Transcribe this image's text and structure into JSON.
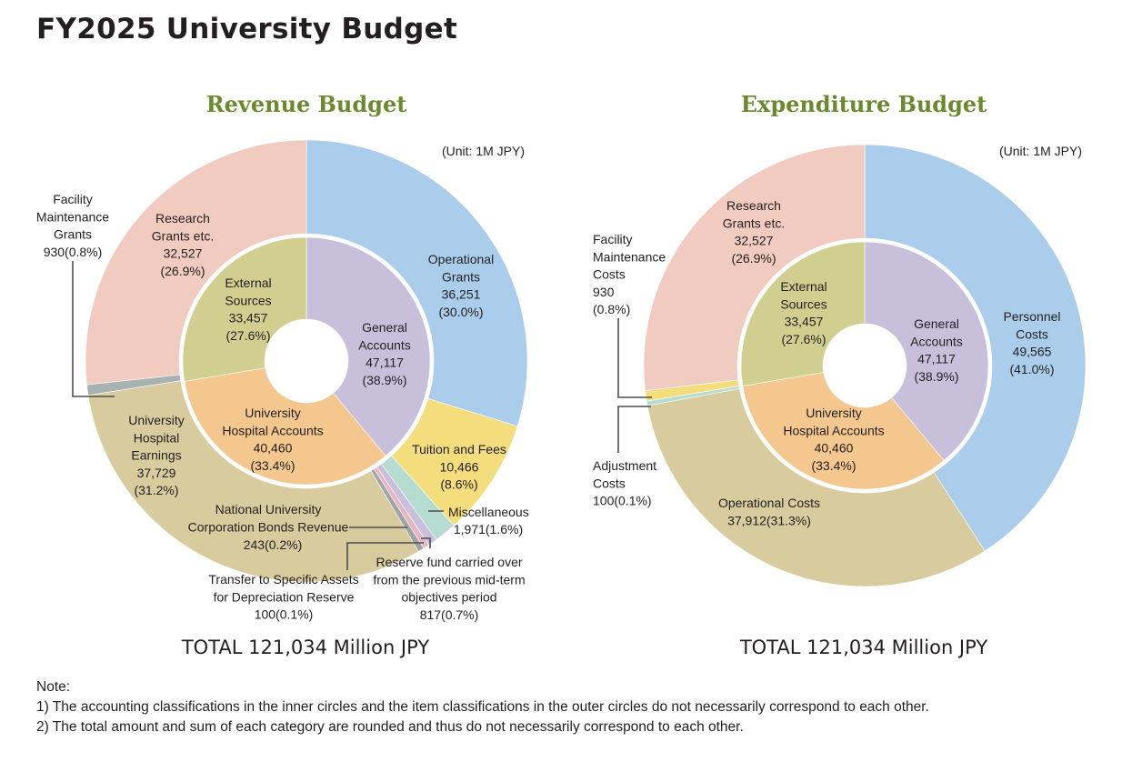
{
  "title": "FY2025 University Budget",
  "notes": {
    "heading": "Note:",
    "items": [
      "1) The accounting classifications in the inner circles and the item classifications in the outer circles do not necessarily correspond to each other.",
      "2) The total amount and sum of each category are rounded and thus do not necessarily correspond to each other."
    ]
  },
  "chart_data": [
    {
      "type": "pie",
      "title": "Revenue Budget",
      "unit": "(Unit: 1M JPY)",
      "total": "TOTAL 121,034 Million JPY",
      "outer": [
        {
          "label": "Operational Grants",
          "value": 36251,
          "pct": "(30.0%)",
          "color": "#abcdec"
        },
        {
          "label": "Tuition and Fees",
          "value": 10466,
          "pct": "(8.6%)",
          "color": "#f3dd7d"
        },
        {
          "label": "Miscellaneous",
          "value": 1971,
          "pct": "1,971(1.6%)",
          "color": "#b5dcd0"
        },
        {
          "label": "Reserve fund carried over from the previous mid-term objectives period",
          "value": 817,
          "pct": "817(0.7%)",
          "color": "#c9bfdd"
        },
        {
          "label": "Transfer to Specific Assets for Depreciation Reserve",
          "value": 100,
          "pct": "100(0.1%)",
          "color": "#e8b6c3"
        },
        {
          "label": "National University Corporation Bonds Revenue",
          "value": 243,
          "pct": "243(0.2%)",
          "color": "#9ea5a4"
        },
        {
          "label": "University Hospital Earnings",
          "value": 37729,
          "pct": "(31.2%)",
          "color": "#d8cc9e"
        },
        {
          "label": "Facility Maintenance Grants",
          "value": 930,
          "pct": "930(0.8%)",
          "color": "#a8b2b0"
        },
        {
          "label": "Research Grants etc.",
          "value": 32527,
          "pct": "(26.9%)",
          "color": "#f1cbbf"
        }
      ],
      "inner": [
        {
          "label": "General Accounts",
          "value": 47117,
          "pct": "(38.9%)",
          "color": "#c8c0db"
        },
        {
          "label": "University Hospital Accounts",
          "value": 40460,
          "pct": "(33.4%)",
          "color": "#f3c78d"
        },
        {
          "label": "External Sources",
          "value": 33457,
          "pct": "(27.6%)",
          "color": "#d1cf90"
        }
      ]
    },
    {
      "type": "pie",
      "title": "Expenditure Budget",
      "unit": "(Unit: 1M JPY)",
      "total": "TOTAL 121,034 Million JPY",
      "outer": [
        {
          "label": "Personnel Costs",
          "value": 49565,
          "pct": "(41.0%)",
          "color": "#abcdec"
        },
        {
          "label": "Operational Costs",
          "value": 37912,
          "pct": "37,912(31.3%)",
          "color": "#d8cc9e"
        },
        {
          "label": "Adjustment Costs",
          "value": 100,
          "pct": "100(0.1%)",
          "color": "#b5dcd0"
        },
        {
          "label": "Facility Maintenance Costs",
          "value": 930,
          "pct": "(0.8%)",
          "color": "#f3dd7d"
        },
        {
          "label": "Research Grants etc.",
          "value": 32527,
          "pct": "(26.9%)",
          "color": "#f1cbbf"
        }
      ],
      "inner": [
        {
          "label": "General Accounts",
          "value": 47117,
          "pct": "(38.9%)",
          "color": "#c8c0db"
        },
        {
          "label": "University Hospital Accounts",
          "value": 40460,
          "pct": "(33.4%)",
          "color": "#f3c78d"
        },
        {
          "label": "External Sources",
          "value": 33457,
          "pct": "(27.6%)",
          "color": "#d1cf90"
        }
      ]
    }
  ]
}
